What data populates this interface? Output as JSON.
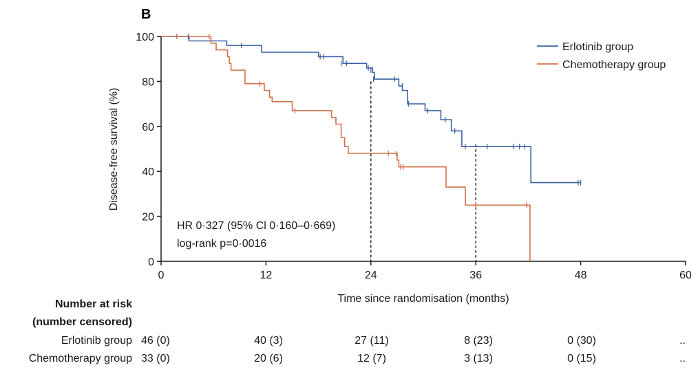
{
  "chart_data": {
    "type": "line",
    "panel_label": "B",
    "title": "",
    "xlabel": "Time since randomisation (months)",
    "ylabel": "Disease-free survival (%)",
    "xlim": [
      0,
      60
    ],
    "ylim": [
      0,
      100
    ],
    "x_ticks": [
      0,
      12,
      24,
      36,
      48,
      60
    ],
    "y_ticks": [
      0,
      20,
      40,
      60,
      80,
      100
    ],
    "grid": false,
    "legend_position": "top-right",
    "colors": {
      "erlotinib": "#3d63a0",
      "chemotherapy": "#d2704a",
      "axis": "#1a1a1a"
    },
    "series": [
      {
        "name": "Erlotinib group",
        "step": [
          [
            0,
            100
          ],
          [
            3.2,
            100
          ],
          [
            3.2,
            98
          ],
          [
            7.5,
            98
          ],
          [
            7.5,
            96
          ],
          [
            11.5,
            96
          ],
          [
            11.5,
            93
          ],
          [
            18,
            93
          ],
          [
            18,
            91
          ],
          [
            20.8,
            91
          ],
          [
            20.8,
            88
          ],
          [
            23.5,
            88
          ],
          [
            23.5,
            86
          ],
          [
            24.2,
            86
          ],
          [
            24.2,
            84
          ],
          [
            24.4,
            84
          ],
          [
            24.4,
            81
          ],
          [
            27.2,
            81
          ],
          [
            27.2,
            78
          ],
          [
            27.6,
            78
          ],
          [
            27.6,
            76
          ],
          [
            28.2,
            76
          ],
          [
            28.2,
            70
          ],
          [
            30.2,
            70
          ],
          [
            30.2,
            67
          ],
          [
            32,
            67
          ],
          [
            32,
            63
          ],
          [
            33.2,
            63
          ],
          [
            33.2,
            58
          ],
          [
            34.4,
            58
          ],
          [
            34.4,
            51
          ],
          [
            42.3,
            51
          ],
          [
            42.3,
            35
          ],
          [
            48,
            35
          ]
        ],
        "censored": [
          [
            1.8,
            100
          ],
          [
            3.1,
            100
          ],
          [
            9.2,
            96
          ],
          [
            18.2,
            91
          ],
          [
            18.6,
            91
          ],
          [
            20.6,
            88
          ],
          [
            21.2,
            88
          ],
          [
            23.7,
            86
          ],
          [
            24,
            85
          ],
          [
            24.3,
            81
          ],
          [
            26.7,
            81
          ],
          [
            27.6,
            78
          ],
          [
            28.3,
            70
          ],
          [
            30.5,
            67
          ],
          [
            32.5,
            63
          ],
          [
            33.6,
            58
          ],
          [
            34.8,
            51
          ],
          [
            37.3,
            51
          ],
          [
            40.3,
            51
          ],
          [
            41,
            51
          ],
          [
            41.6,
            51
          ],
          [
            47.7,
            35
          ],
          [
            48,
            35
          ]
        ]
      },
      {
        "name": "Chemotherapy group",
        "step": [
          [
            0,
            100
          ],
          [
            5.7,
            100
          ],
          [
            5.7,
            97
          ],
          [
            6.3,
            97
          ],
          [
            6.3,
            94
          ],
          [
            7.6,
            94
          ],
          [
            7.6,
            91
          ],
          [
            7.8,
            91
          ],
          [
            7.8,
            88
          ],
          [
            8,
            88
          ],
          [
            8,
            85
          ],
          [
            9.6,
            85
          ],
          [
            9.6,
            79
          ],
          [
            11.8,
            79
          ],
          [
            11.8,
            76
          ],
          [
            12.4,
            76
          ],
          [
            12.4,
            73
          ],
          [
            12.7,
            73
          ],
          [
            12.7,
            71
          ],
          [
            15,
            71
          ],
          [
            15,
            67
          ],
          [
            19.5,
            67
          ],
          [
            19.5,
            64
          ],
          [
            20,
            64
          ],
          [
            20,
            61
          ],
          [
            20.6,
            61
          ],
          [
            20.6,
            55
          ],
          [
            21,
            55
          ],
          [
            21,
            51
          ],
          [
            21.4,
            51
          ],
          [
            21.4,
            48
          ],
          [
            27,
            48
          ],
          [
            27,
            45
          ],
          [
            27.2,
            45
          ],
          [
            27.2,
            42
          ],
          [
            32.6,
            42
          ],
          [
            32.6,
            33
          ],
          [
            34.8,
            33
          ],
          [
            34.8,
            25
          ],
          [
            42.2,
            25
          ],
          [
            42.2,
            0
          ]
        ],
        "censored": [
          [
            1.8,
            100
          ],
          [
            5.5,
            100
          ],
          [
            11.3,
            79
          ],
          [
            15.3,
            67
          ],
          [
            26,
            48
          ],
          [
            26.9,
            48
          ],
          [
            27.4,
            42
          ],
          [
            27.7,
            42
          ],
          [
            36,
            25
          ],
          [
            41.8,
            25
          ]
        ]
      }
    ],
    "reference_lines": [
      {
        "x": 24,
        "y_top": 80,
        "style": "dashed"
      },
      {
        "x": 36,
        "y_top": 52,
        "style": "dashed"
      }
    ],
    "annotations": [
      "HR 0·327 (95% Cl 0·160–0·669)",
      "log-rank p=0·0016"
    ],
    "risk_table": {
      "header_line1": "Number at risk",
      "header_line2": "(number censored)",
      "rows": [
        {
          "label": "Erlotinib group",
          "values": [
            "46 (0)",
            "40 (3)",
            "27 (11)",
            "8 (23)",
            "0 (30)",
            ".."
          ]
        },
        {
          "label": "Chemotherapy group",
          "values": [
            "33 (0)",
            "20 (6)",
            "12 (7)",
            "3 (13)",
            "0 (15)",
            ".."
          ]
        }
      ]
    }
  }
}
